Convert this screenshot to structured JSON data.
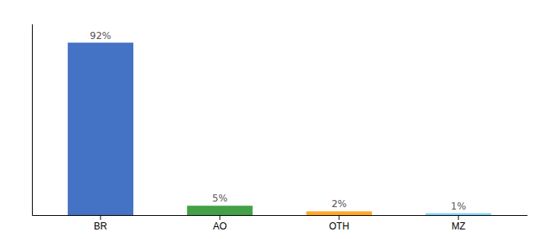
{
  "chart_data": {
    "type": "bar",
    "categories": [
      "BR",
      "AO",
      "OTH",
      "MZ"
    ],
    "values": [
      92,
      5,
      2,
      1
    ],
    "value_labels": [
      "92%",
      "5%",
      "2%",
      "1%"
    ],
    "colors": [
      "#4472C4",
      "#43A047",
      "#FFA726",
      "#81D4FA"
    ],
    "ylim": [
      0,
      102
    ],
    "data_labels": true,
    "tick_labels": "x",
    "grid": false
  }
}
